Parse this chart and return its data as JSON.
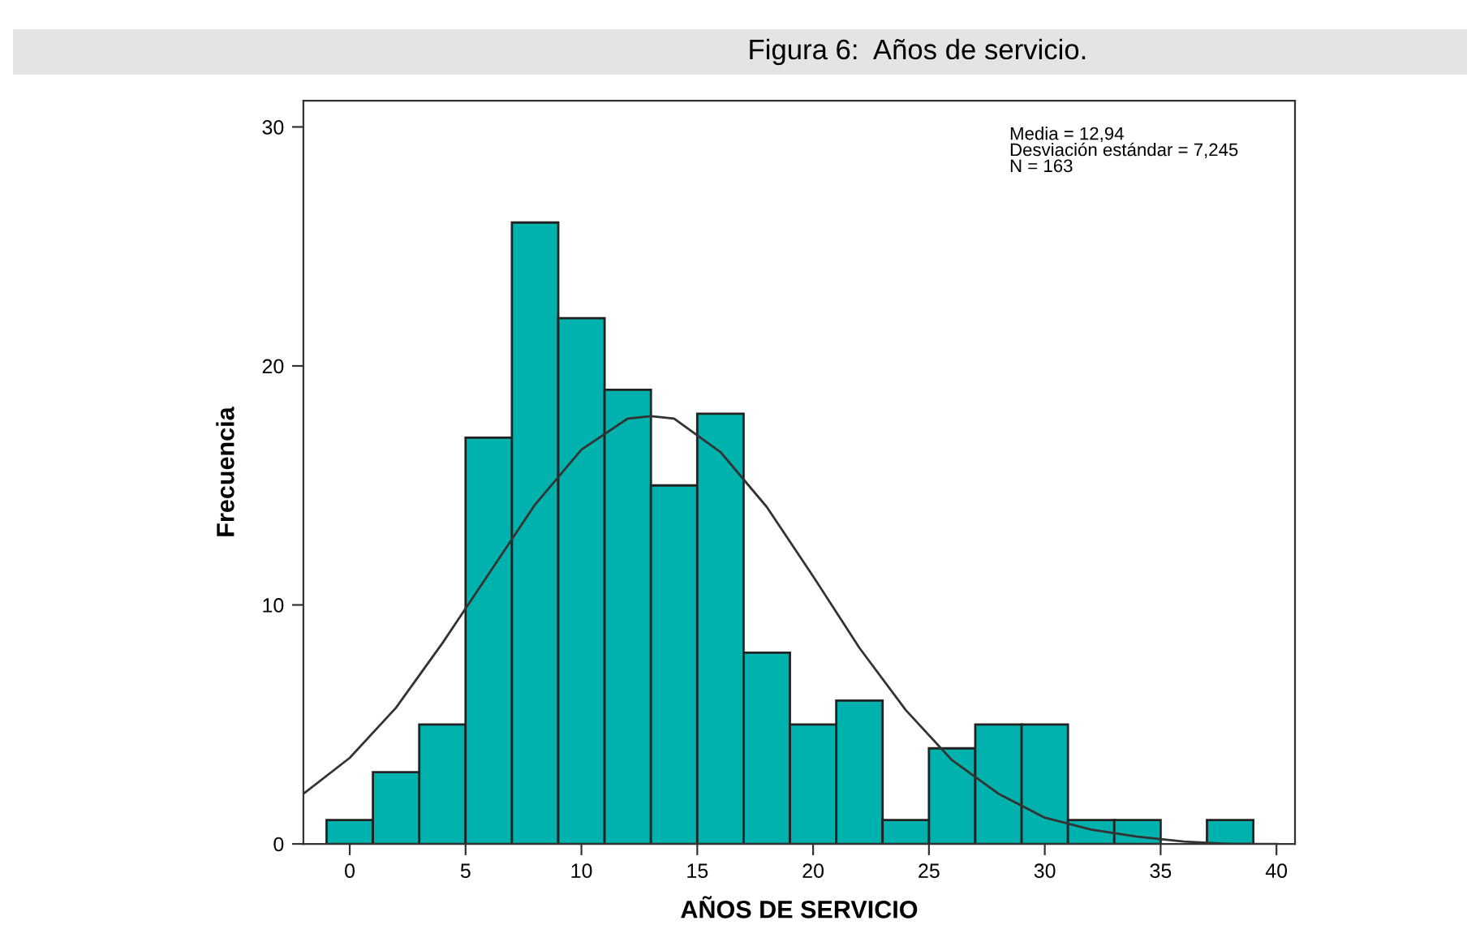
{
  "chart_data": {
    "type": "histogram",
    "title": "Figura 6:  Años de servicio.",
    "xlabel": "AÑOS DE SERVICIO",
    "ylabel": "Frecuencia",
    "bins": [
      -1,
      1,
      3,
      5,
      7,
      9,
      11,
      13,
      15,
      17,
      19,
      21,
      23,
      25,
      27,
      29,
      31,
      33,
      35,
      37,
      39
    ],
    "values": [
      1,
      3,
      5,
      17,
      26,
      22,
      19,
      15,
      18,
      8,
      5,
      6,
      1,
      4,
      5,
      5,
      1,
      1,
      0,
      1
    ],
    "color": "#00b2ad",
    "series": [
      {
        "type": "line",
        "color": "#333333",
        "x": [
          -2,
          0,
          2,
          4,
          6,
          8,
          10,
          12,
          13,
          14,
          16,
          18,
          20,
          22,
          24,
          26,
          28,
          30,
          32,
          34,
          36,
          38,
          40
        ],
        "values": [
          2.1,
          3.6,
          5.7,
          8.4,
          11.3,
          14.2,
          16.5,
          17.8,
          17.9,
          17.8,
          16.4,
          14.1,
          11.2,
          8.2,
          5.6,
          3.5,
          2.1,
          1.1,
          0.6,
          0.3,
          0.1,
          0.0,
          0.0
        ]
      }
    ],
    "annotations": [
      "Media = 12,94\nDesviación estándar = 7,245\nN = 163"
    ],
    "xlim": [
      -2.0,
      40.8
    ],
    "ylim": [
      0,
      31.1
    ],
    "xticks": [
      0,
      5,
      10,
      15,
      20,
      25,
      30,
      35,
      40
    ],
    "yticks": [
      0,
      10,
      20,
      30
    ],
    "grid": false,
    "legend": false
  }
}
